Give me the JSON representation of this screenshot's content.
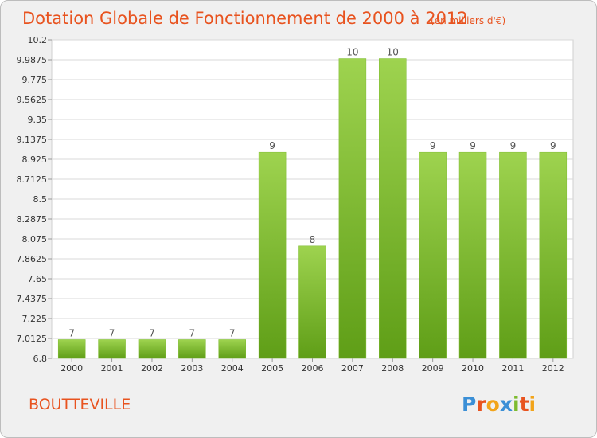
{
  "chart_data": {
    "type": "bar",
    "title": "Dotation Globale de Fonctionnement de 2000 à 2012",
    "subtitle": "(en milliers d'€)",
    "categories": [
      "2000",
      "2001",
      "2002",
      "2003",
      "2004",
      "2005",
      "2006",
      "2007",
      "2008",
      "2009",
      "2010",
      "2011",
      "2012"
    ],
    "values": [
      7,
      7,
      7,
      7,
      7,
      9,
      8,
      10,
      10,
      9,
      9,
      9,
      9
    ],
    "data_labels": [
      "7",
      "7",
      "7",
      "7",
      "7",
      "9",
      "8",
      "10",
      "10",
      "9",
      "9",
      "9",
      "9"
    ],
    "yticks": [
      "6.8",
      "7.0125",
      "7.225",
      "7.4375",
      "7.65",
      "7.8625",
      "8.075",
      "8.2875",
      "8.5",
      "8.7125",
      "8.925",
      "9.1375",
      "9.35",
      "9.5625",
      "9.775",
      "9.9875",
      "10.2"
    ],
    "ylim": [
      6.8,
      10.2
    ],
    "xlabel": "",
    "ylabel": "",
    "grid": true,
    "bar_color": "#7dbb2f"
  },
  "location": "BOUTTEVILLE",
  "brand": {
    "letters": [
      "P",
      "r",
      "o",
      "x",
      "i",
      "t",
      "i"
    ],
    "colors": [
      "#3b8fd6",
      "#e8531f",
      "#f2a41a",
      "#3b8fd6",
      "#7dbb2f",
      "#e8531f",
      "#f2a41a"
    ]
  }
}
